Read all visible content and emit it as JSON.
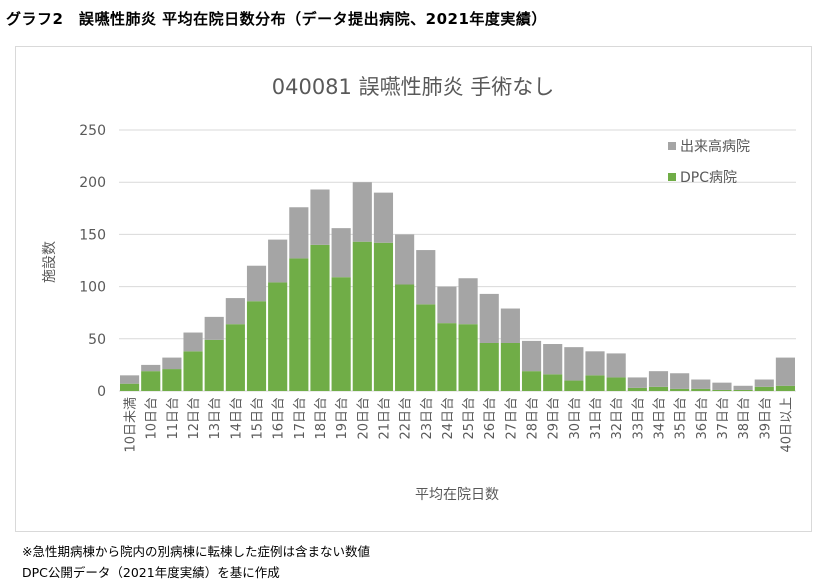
{
  "heading": "グラフ2　誤嚥性肺炎 平均在院日数分布（データ提出病院、2021年度実績）",
  "notes": [
    "※急性期病棟から院内の別病棟に転棟した症例は含まない数値",
    "DPC公開データ（2021年度実績）を基に作成"
  ],
  "chart_data": {
    "type": "bar",
    "stacked": true,
    "title": "040081 誤嚥性肺炎 手術なし",
    "xlabel": "平均在院日数",
    "ylabel": "施設数",
    "ylim": [
      0,
      250
    ],
    "yticks": [
      0,
      50,
      100,
      150,
      200,
      250
    ],
    "grid": true,
    "legend_position": "top-right",
    "categories": [
      "10日未満",
      "10日台",
      "11日台",
      "12日台",
      "13日台",
      "14日台",
      "15日台",
      "16日台",
      "17日台",
      "18日台",
      "19日台",
      "20日台",
      "21日台",
      "22日台",
      "23日台",
      "24日台",
      "25日台",
      "26日台",
      "27日台",
      "28日台",
      "29日台",
      "30日台",
      "31日台",
      "32日台",
      "33日台",
      "34日台",
      "35日台",
      "36日台",
      "37日台",
      "38日台",
      "39日台",
      "40日以上"
    ],
    "series": [
      {
        "name": "DPC病院",
        "color": "#70ad47",
        "values": [
          7,
          19,
          21,
          38,
          49,
          64,
          86,
          104,
          127,
          140,
          109,
          143,
          142,
          102,
          83,
          65,
          64,
          46,
          46,
          19,
          16,
          10,
          15,
          13,
          3,
          4,
          2,
          2,
          1,
          1,
          4,
          5
        ]
      },
      {
        "name": "出来高病院",
        "color": "#a5a5a5",
        "values": [
          8,
          6,
          11,
          18,
          22,
          25,
          34,
          41,
          49,
          53,
          47,
          57,
          48,
          48,
          52,
          35,
          44,
          47,
          33,
          29,
          29,
          32,
          23,
          23,
          10,
          15,
          15,
          9,
          7,
          4,
          7,
          27
        ]
      }
    ]
  }
}
